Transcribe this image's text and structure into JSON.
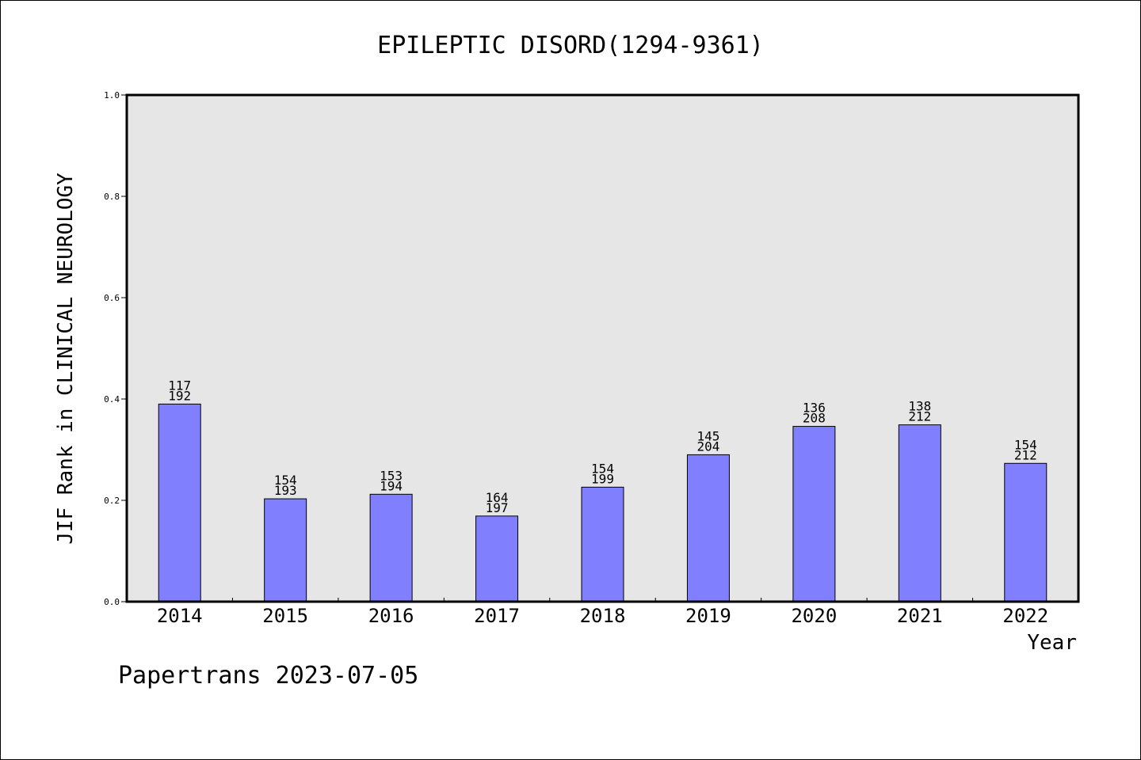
{
  "chart_data": {
    "type": "bar",
    "title": "EPILEPTIC DISORD(1294-9361)",
    "xlabel": "Year",
    "ylabel": "JIF Rank in CLINICAL NEUROLOGY",
    "ylim": [
      0,
      1.0
    ],
    "yticks": [
      "0.0",
      "0.2",
      "0.4",
      "0.6",
      "0.8",
      "1.0"
    ],
    "grid": false,
    "categories": [
      "2014",
      "2015",
      "2016",
      "2017",
      "2018",
      "2019",
      "2020",
      "2021",
      "2022"
    ],
    "values": [
      0.39,
      0.203,
      0.212,
      0.169,
      0.226,
      0.29,
      0.346,
      0.349,
      0.273
    ],
    "ranks": [
      "117",
      "154",
      "153",
      "164",
      "154",
      "145",
      "136",
      "138",
      "154"
    ],
    "totals": [
      "192",
      "193",
      "194",
      "197",
      "199",
      "204",
      "208",
      "212",
      "212"
    ],
    "colors": {
      "bar": "#8080ff",
      "plot_bg": "#e6e6e6",
      "border": "#000000"
    }
  },
  "footer": {
    "watermark": "Papertrans 2023-07-05"
  }
}
